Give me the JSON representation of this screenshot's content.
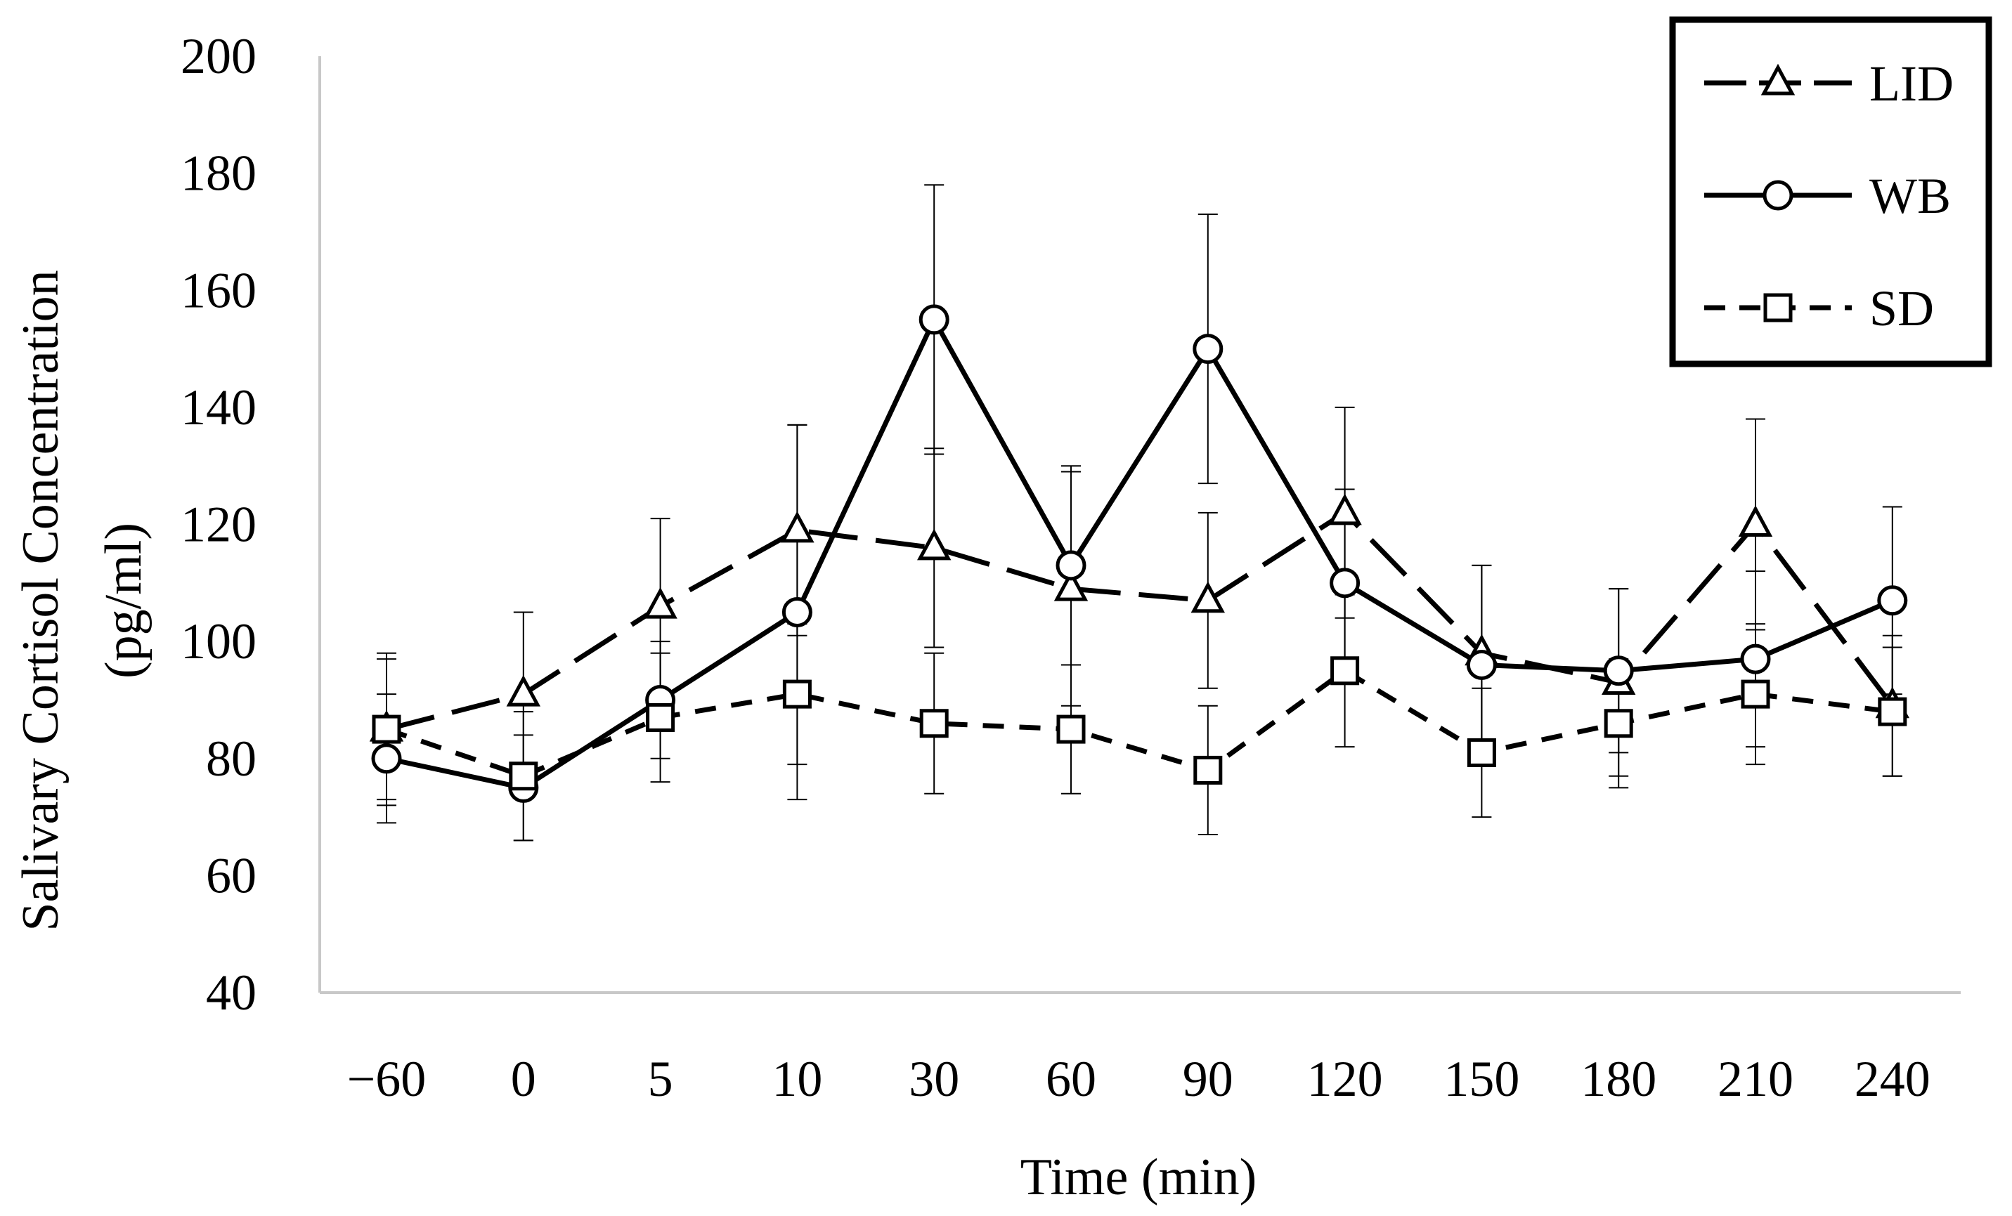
{
  "chart_data": {
    "type": "line",
    "title": "",
    "xlabel": "Time (min)",
    "ylabel_line1": "Salivary Cortisol Concentration",
    "ylabel_line2": "(pg/ml)",
    "ylim": [
      40,
      200
    ],
    "yticks": [
      40,
      60,
      80,
      100,
      120,
      140,
      160,
      180,
      200
    ],
    "categories": [
      "−60",
      "0",
      "5",
      "10",
      "30",
      "60",
      "90",
      "120",
      "150",
      "180",
      "210",
      "240"
    ],
    "legend_position": "top-right",
    "grid": false,
    "series": [
      {
        "name": "LID",
        "marker": "triangle",
        "line_style": "long-dash",
        "values": [
          85,
          91,
          106,
          119,
          116,
          109,
          107,
          122,
          98,
          93,
          120,
          89
        ],
        "errors": [
          12,
          14,
          15,
          18,
          17,
          20,
          15,
          18,
          15,
          16,
          18,
          12
        ]
      },
      {
        "name": "WB",
        "marker": "circle",
        "line_style": "solid",
        "values": [
          80,
          75,
          90,
          105,
          155,
          113,
          150,
          110,
          96,
          95,
          97,
          107
        ],
        "errors": [
          11,
          9,
          10,
          32,
          23,
          17,
          23,
          16,
          17,
          14,
          15,
          16
        ]
      },
      {
        "name": "SD",
        "marker": "square",
        "line_style": "short-dash",
        "values": [
          85,
          77,
          87,
          91,
          86,
          85,
          78,
          95,
          81,
          86,
          91,
          88
        ],
        "errors": [
          13,
          11,
          11,
          12,
          12,
          11,
          11,
          13,
          11,
          11,
          12,
          11
        ]
      }
    ]
  },
  "colors": {
    "axis": "#c8c8c8",
    "line": "#000000",
    "marker_fill": "#ffffff",
    "background": "#ffffff"
  }
}
